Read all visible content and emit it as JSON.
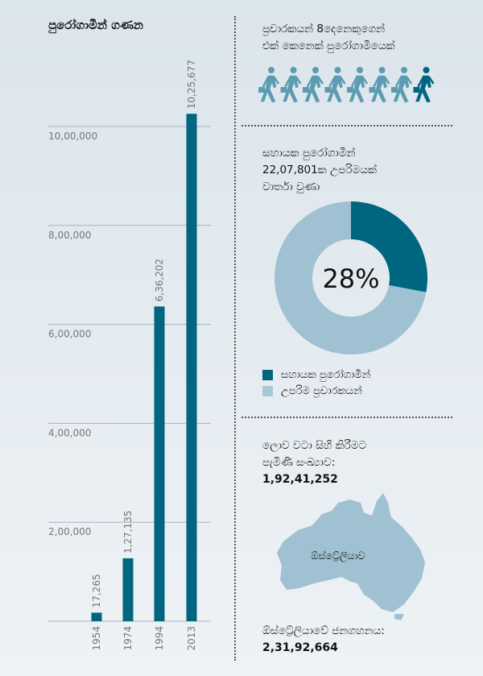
{
  "chart_data": {
    "type": "bar",
    "title": "පුරෝගාමීන් ගණන",
    "categories": [
      "1954",
      "1974",
      "1994",
      "2013"
    ],
    "values": [
      17265,
      127135,
      636202,
      1025677
    ],
    "data_labels": [
      "17,265",
      "1,27,135",
      "6,36,202",
      "10,25,677"
    ],
    "yticks": [
      200000,
      400000,
      600000,
      800000,
      1000000
    ],
    "ytick_labels": [
      "2,00,000",
      "4,00,000",
      "6,00,000",
      "8,00,000",
      "10,00,000"
    ],
    "ylim": [
      0,
      1000000
    ],
    "grid": true,
    "color": "#006680"
  },
  "ratio_panel": {
    "line1": "ප්‍රචාරකයන් 8දෙනෙකුගෙන්",
    "line2": "එක් කෙනෙක් පුරෝගාමියෙක්",
    "icon": "walking-person-briefcase-icon",
    "total_icons": 8,
    "highlighted_icons": 1,
    "icon_color": "#5c9bb2",
    "highlight_color": "#006680"
  },
  "donut_panel": {
    "line1": "සහායක පුරෝගාමීන්",
    "line2": "22,07,801ක උපරිමයක්",
    "line3": "වාර්තා වුණා",
    "center_label": "28%",
    "percent": 28,
    "legend": [
      {
        "label": "සහායක පුරෝගාමීන්",
        "color": "#006680"
      },
      {
        "label": "උපරිම ප්‍රචාරකයන්",
        "color": "#9fc1d1"
      }
    ]
  },
  "memorial_panel": {
    "line1": "ලොව වටා සිහි කිරීමට",
    "line2": "පැමිණි සංඛ්‍යාව:",
    "value": "1,92,41,252",
    "map_label": "ඕස්ට්‍රේලියාව",
    "map_color": "#9fc1d1",
    "population_label": "ඕස්ට්‍රේලියාවේ ජනගහනය:",
    "population_value": "2,31,92,664"
  }
}
